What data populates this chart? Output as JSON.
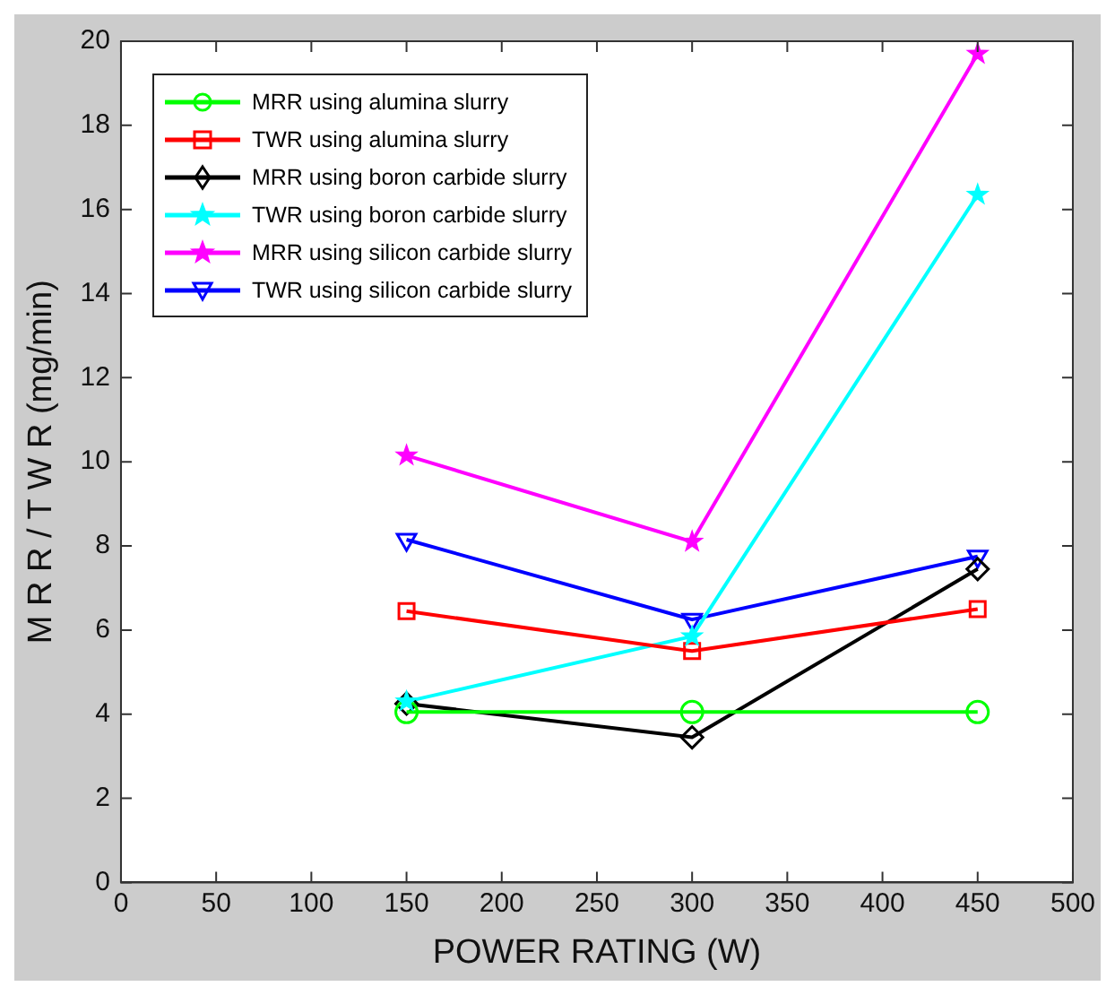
{
  "chart_data": {
    "type": "line",
    "xlabel": "POWER RATING (W)",
    "ylabel": "M R R / T W R (mg/min)",
    "x": [
      150,
      300,
      450
    ],
    "xlim": [
      0,
      500
    ],
    "xticks": [
      0,
      50,
      100,
      150,
      200,
      250,
      300,
      350,
      400,
      450,
      500
    ],
    "ylim": [
      0,
      20
    ],
    "yticks": [
      0,
      2,
      4,
      6,
      8,
      10,
      12,
      14,
      16,
      18,
      20
    ],
    "grid": false,
    "legend": "top left",
    "line_style": "solid",
    "series": [
      {
        "name": "MRR using alumina slurry",
        "color": "#00ff00",
        "marker": "circle",
        "values": [
          4.05,
          4.05,
          4.05
        ]
      },
      {
        "name": "TWR using alumina slurry",
        "color": "#ff0000",
        "marker": "square",
        "values": [
          6.45,
          5.5,
          6.5
        ]
      },
      {
        "name": "MRR using boron carbide slurry",
        "color": "#000000",
        "marker": "diamond",
        "values": [
          4.25,
          3.45,
          7.45
        ]
      },
      {
        "name": "TWR using boron carbide slurry",
        "color": "#00ffff",
        "marker": "star",
        "values": [
          4.3,
          5.85,
          16.35
        ]
      },
      {
        "name": "MRR using silicon carbide slurry",
        "color": "#ff00ff",
        "marker": "star",
        "values": [
          10.15,
          8.1,
          19.7
        ]
      },
      {
        "name": "TWR using silicon carbide slurry",
        "color": "#0000ff",
        "marker": "triangle",
        "values": [
          8.15,
          6.25,
          7.75
        ]
      }
    ]
  }
}
